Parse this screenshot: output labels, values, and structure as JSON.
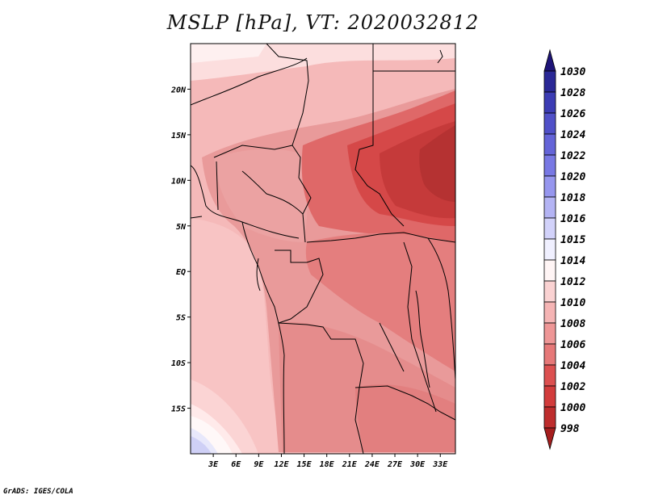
{
  "title": "MSLP [hPa], VT: 2020032812",
  "footer": "GrADS: IGES/COLA",
  "map": {
    "variable": "MSLP",
    "units": "hPa",
    "valid_time": "2020032812",
    "lat_labels": [
      "20N",
      "15N",
      "10N",
      "5N",
      "EQ",
      "5S",
      "10S",
      "15S"
    ],
    "lon_labels": [
      "3E",
      "6E",
      "9E",
      "12E",
      "15E",
      "18E",
      "21E",
      "24E",
      "27E",
      "30E",
      "33E"
    ],
    "lat_values": [
      20,
      15,
      10,
      5,
      0,
      -5,
      -10,
      -15
    ],
    "lon_values": [
      3,
      6,
      9,
      12,
      15,
      18,
      21,
      24,
      27,
      30,
      33
    ],
    "extent": {
      "lon_min": 0,
      "lon_max": 35,
      "lat_min": -20,
      "lat_max": 25
    }
  },
  "colorbar": {
    "levels": [
      "1030",
      "1028",
      "1026",
      "1024",
      "1022",
      "1020",
      "1018",
      "1016",
      "1015",
      "1014",
      "1012",
      "1010",
      "1008",
      "1006",
      "1004",
      "1002",
      "1000",
      "998"
    ],
    "colors": [
      "#1e1478",
      "#2a2896",
      "#3c3cb4",
      "#5050c8",
      "#6464d8",
      "#7878e4",
      "#9696ee",
      "#b4b4f4",
      "#d2d2fa",
      "#f0f0ff",
      "#fff5f5",
      "#fad2d2",
      "#f5b4b4",
      "#ee9696",
      "#e67878",
      "#dc5050",
      "#d23c3c",
      "#be2d2d",
      "#a51e1e"
    ]
  }
}
